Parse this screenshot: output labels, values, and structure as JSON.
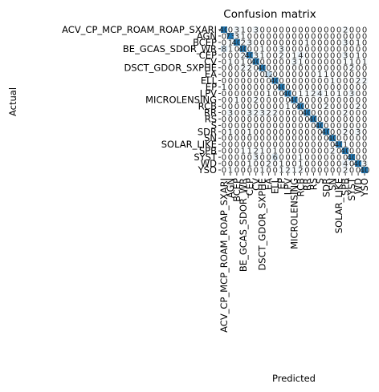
{
  "chart_data": {
    "type": "heatmap",
    "title": "Confusion matrix",
    "xlabel": "Predicted",
    "ylabel": "Actual",
    "labels": [
      "ACV_CP_MCP_ROAM_ROAP_SXARI",
      "AGN",
      "BCEP",
      "BE_GCAS_SDOR_WR",
      "CEP",
      "CV",
      "DSCT_GDOR_SXPHE",
      "EA",
      "ELL",
      "EP",
      "LPV",
      "MICROLENSING",
      "RCB",
      "RR",
      "RS",
      "S",
      "SDR",
      "SN",
      "SOLAR_LIKE",
      "SPB",
      "SYST",
      "WD",
      "YSO"
    ],
    "matrix": [
      [
        40,
        0,
        3,
        1,
        0,
        3,
        0,
        0,
        0,
        0,
        0,
        0,
        0,
        0,
        0,
        0,
        0,
        0,
        0,
        2,
        0,
        0,
        0
      ],
      [
        0,
        73,
        3,
        1,
        0,
        0,
        0,
        0,
        0,
        0,
        0,
        0,
        0,
        0,
        0,
        0,
        0,
        0,
        0,
        0,
        0,
        0,
        0
      ],
      [
        0,
        1,
        40,
        2,
        3,
        0,
        0,
        0,
        0,
        0,
        0,
        0,
        0,
        1,
        0,
        0,
        0,
        0,
        0,
        3,
        0,
        1,
        0
      ],
      [
        8,
        1,
        0,
        40,
        0,
        0,
        1,
        0,
        0,
        3,
        0,
        0,
        0,
        0,
        0,
        0,
        0,
        0,
        0,
        0,
        0,
        0,
        0
      ],
      [
        0,
        0,
        0,
        2,
        40,
        3,
        1,
        0,
        0,
        2,
        0,
        1,
        4,
        0,
        0,
        0,
        0,
        0,
        0,
        3,
        0,
        1,
        0
      ],
      [
        0,
        1,
        0,
        1,
        0,
        40,
        0,
        0,
        0,
        0,
        0,
        3,
        1,
        0,
        0,
        0,
        0,
        0,
        0,
        1,
        1,
        0,
        1
      ],
      [
        0,
        0,
        0,
        2,
        2,
        0,
        40,
        0,
        0,
        0,
        0,
        0,
        0,
        0,
        0,
        0,
        0,
        0,
        0,
        0,
        2,
        0,
        0
      ],
      [
        0,
        0,
        0,
        0,
        0,
        0,
        0,
        12,
        0,
        0,
        0,
        0,
        0,
        0,
        0,
        1,
        1,
        0,
        0,
        0,
        0,
        0,
        0
      ],
      [
        0,
        0,
        0,
        0,
        0,
        0,
        0,
        0,
        40,
        0,
        0,
        0,
        0,
        0,
        0,
        0,
        0,
        1,
        0,
        0,
        0,
        2,
        2
      ],
      [
        1,
        0,
        0,
        0,
        0,
        0,
        0,
        0,
        0,
        40,
        0,
        0,
        0,
        0,
        0,
        0,
        0,
        0,
        0,
        0,
        0,
        0,
        0
      ],
      [
        0,
        0,
        0,
        0,
        0,
        0,
        0,
        1,
        0,
        0,
        40,
        0,
        1,
        1,
        2,
        4,
        1,
        0,
        1,
        0,
        3,
        0,
        0
      ],
      [
        0,
        0,
        1,
        0,
        0,
        2,
        0,
        0,
        0,
        0,
        0,
        40,
        0,
        0,
        0,
        0,
        0,
        0,
        0,
        0,
        0,
        0,
        0
      ],
      [
        0,
        0,
        0,
        0,
        0,
        0,
        0,
        0,
        0,
        0,
        1,
        0,
        40,
        0,
        0,
        0,
        2,
        0,
        0,
        0,
        0,
        2,
        0
      ],
      [
        0,
        3,
        0,
        0,
        3,
        2,
        3,
        2,
        2,
        0,
        0,
        0,
        0,
        40,
        0,
        0,
        0,
        0,
        0,
        2,
        0,
        0,
        0
      ],
      [
        0,
        0,
        0,
        0,
        0,
        0,
        0,
        0,
        0,
        0,
        0,
        0,
        0,
        0,
        40,
        0,
        0,
        0,
        0,
        0,
        0,
        0,
        0
      ],
      [
        0,
        0,
        0,
        0,
        0,
        0,
        0,
        0,
        0,
        0,
        0,
        0,
        0,
        0,
        0,
        40,
        0,
        0,
        0,
        0,
        0,
        0,
        0
      ],
      [
        0,
        1,
        0,
        0,
        1,
        0,
        0,
        0,
        0,
        0,
        0,
        0,
        0,
        0,
        0,
        0,
        40,
        0,
        0,
        2,
        0,
        3,
        0
      ],
      [
        0,
        0,
        0,
        0,
        0,
        0,
        0,
        0,
        0,
        0,
        0,
        0,
        0,
        0,
        0,
        0,
        0,
        40,
        0,
        0,
        0,
        0,
        0
      ],
      [
        0,
        0,
        0,
        0,
        0,
        0,
        0,
        0,
        0,
        0,
        0,
        0,
        0,
        0,
        0,
        0,
        0,
        0,
        40,
        1,
        0,
        0,
        0
      ],
      [
        0,
        0,
        0,
        1,
        1,
        2,
        1,
        0,
        1,
        0,
        0,
        0,
        0,
        0,
        0,
        0,
        0,
        2,
        0,
        40,
        0,
        0,
        0
      ],
      [
        0,
        0,
        0,
        0,
        0,
        3,
        0,
        0,
        6,
        0,
        0,
        0,
        1,
        0,
        0,
        0,
        0,
        0,
        0,
        0,
        40,
        0,
        0
      ],
      [
        0,
        0,
        0,
        0,
        1,
        0,
        0,
        2,
        0,
        1,
        0,
        0,
        1,
        0,
        0,
        0,
        0,
        0,
        0,
        4,
        0,
        40,
        3
      ],
      [
        0,
        1,
        0,
        0,
        0,
        0,
        1,
        0,
        0,
        1,
        2,
        1,
        2,
        0,
        0,
        0,
        0,
        0,
        0,
        2,
        0,
        0,
        40
      ]
    ],
    "color_scale": {
      "low": "#ffffff",
      "high": "#1f77b4",
      "vmin": 0,
      "vmax": 40
    },
    "grid": false,
    "legend": "none"
  }
}
